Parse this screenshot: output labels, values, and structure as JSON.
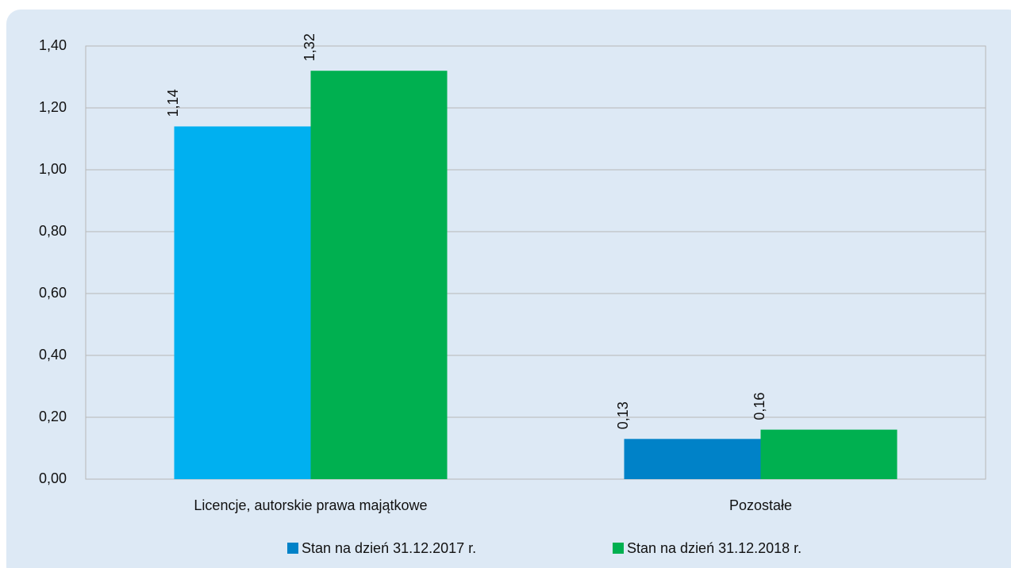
{
  "chart_data": {
    "type": "bar",
    "categories": [
      "Licencje, autorskie prawa majątkowe",
      "Pozostałe"
    ],
    "series": [
      {
        "name": "Stan na dzień 31.12.2017 r.",
        "color": "#0082c8",
        "colors": [
          "#00b0f0",
          "#0082c8"
        ],
        "values": [
          1.14,
          0.13
        ],
        "value_labels": [
          "1,14",
          "0,13"
        ]
      },
      {
        "name": "Stan na dzień 31.12.2018 r.",
        "color": "#00b050",
        "values": [
          1.32,
          0.16
        ],
        "value_labels": [
          "1,32",
          "0,16"
        ]
      }
    ],
    "ylim": [
      0,
      1.4
    ],
    "yticks": [
      {
        "value": 0,
        "label": "0,00"
      },
      {
        "value": 0.2,
        "label": "0,20"
      },
      {
        "value": 0.4,
        "label": "0,40"
      },
      {
        "value": 0.6,
        "label": "0,60"
      },
      {
        "value": 0.8,
        "label": "0,80"
      },
      {
        "value": 1.0,
        "label": "1,00"
      },
      {
        "value": 1.2,
        "label": "1,20"
      },
      {
        "value": 1.4,
        "label": "1,40"
      }
    ],
    "grid": true,
    "legend": "bottom"
  }
}
